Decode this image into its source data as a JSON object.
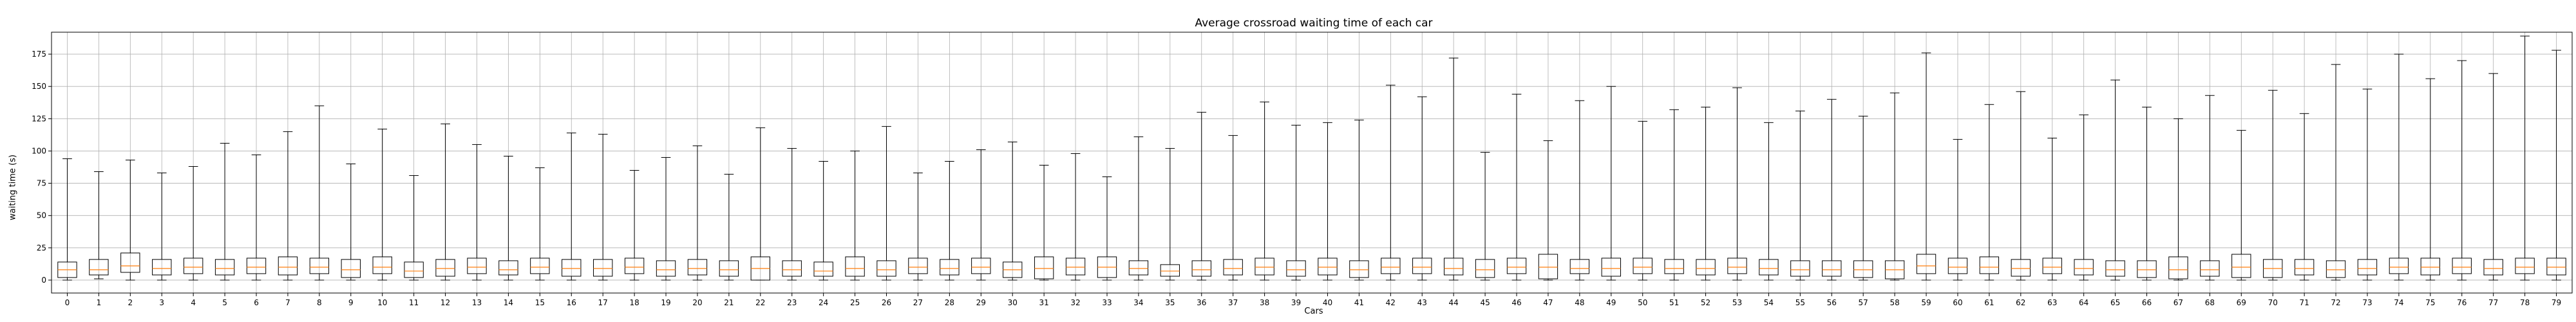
{
  "chart_data": {
    "type": "box",
    "title": "Average crossroad waiting time of each car",
    "xlabel": "Cars",
    "ylabel": "waiting time (s)",
    "grid": true,
    "ylim": [
      -10,
      192
    ],
    "yticks": [
      0,
      25,
      50,
      75,
      100,
      125,
      150,
      175
    ],
    "categories": [
      "0",
      "1",
      "2",
      "3",
      "4",
      "5",
      "6",
      "7",
      "8",
      "9",
      "10",
      "11",
      "12",
      "13",
      "14",
      "15",
      "16",
      "17",
      "18",
      "19",
      "20",
      "21",
      "22",
      "23",
      "24",
      "25",
      "26",
      "27",
      "28",
      "29",
      "30",
      "31",
      "32",
      "33",
      "34",
      "35",
      "36",
      "37",
      "38",
      "39",
      "40",
      "41",
      "42",
      "43",
      "44",
      "45",
      "46",
      "47",
      "48",
      "49",
      "50",
      "51",
      "52",
      "53",
      "54",
      "55",
      "56",
      "57",
      "58",
      "59",
      "60",
      "61",
      "62",
      "63",
      "64",
      "65",
      "66",
      "67",
      "68",
      "69",
      "70",
      "71",
      "72",
      "73",
      "74",
      "75",
      "76",
      "77",
      "78",
      "79"
    ],
    "whisker_high": [
      94,
      84,
      93,
      83,
      88,
      106,
      97,
      115,
      135,
      90,
      117,
      81,
      121,
      105,
      96,
      87,
      114,
      113,
      85,
      95,
      104,
      82,
      118,
      102,
      92,
      100,
      119,
      83,
      92,
      101,
      107,
      89,
      98,
      80,
      111,
      102,
      130,
      112,
      138,
      120,
      122,
      124,
      151,
      142,
      172,
      99,
      144,
      108,
      139,
      150,
      123,
      132,
      134,
      149,
      122,
      131,
      140,
      127,
      145,
      176,
      109,
      136,
      146,
      110,
      128,
      155,
      134,
      125,
      143,
      116,
      147,
      129,
      167,
      148,
      175,
      156,
      170,
      160,
      189,
      178
    ],
    "q3": [
      14,
      16,
      21,
      16,
      17,
      16,
      17,
      18,
      17,
      16,
      18,
      14,
      16,
      17,
      15,
      17,
      16,
      16,
      17,
      15,
      16,
      15,
      18,
      15,
      14,
      18,
      15,
      17,
      16,
      17,
      14,
      18,
      17,
      18,
      15,
      12,
      15,
      16,
      17,
      15,
      17,
      15,
      17,
      17,
      17,
      16,
      17,
      20,
      16,
      17,
      17,
      16,
      16,
      17,
      16,
      15,
      15,
      15,
      15,
      20,
      17,
      18,
      16,
      17,
      16,
      15,
      15,
      18,
      15,
      20,
      16,
      16,
      15,
      16,
      17,
      17,
      17,
      16,
      17,
      17
    ],
    "median": [
      8,
      8,
      11,
      9,
      10,
      9,
      10,
      10,
      10,
      8,
      10,
      7,
      9,
      10,
      8,
      10,
      9,
      9,
      10,
      8,
      9,
      8,
      9,
      8,
      7,
      9,
      8,
      10,
      9,
      10,
      8,
      9,
      10,
      10,
      9,
      7,
      8,
      9,
      10,
      8,
      10,
      8,
      10,
      10,
      9,
      8,
      10,
      10,
      9,
      9,
      10,
      9,
      9,
      10,
      9,
      8,
      8,
      8,
      8,
      11,
      10,
      10,
      9,
      10,
      9,
      8,
      8,
      8,
      8,
      10,
      9,
      9,
      8,
      9,
      10,
      10,
      10,
      9,
      10,
      10
    ],
    "q1": [
      2,
      4,
      6,
      4,
      5,
      4,
      5,
      4,
      5,
      2,
      5,
      2,
      3,
      5,
      4,
      5,
      3,
      3,
      5,
      3,
      4,
      3,
      0,
      3,
      3,
      3,
      3,
      5,
      4,
      5,
      2,
      1,
      4,
      2,
      4,
      3,
      3,
      4,
      4,
      3,
      4,
      2,
      5,
      5,
      4,
      2,
      5,
      1,
      5,
      3,
      5,
      5,
      4,
      5,
      4,
      3,
      3,
      2,
      1,
      5,
      5,
      5,
      3,
      5,
      4,
      3,
      2,
      1,
      3,
      2,
      2,
      4,
      2,
      4,
      5,
      4,
      5,
      4,
      5,
      4
    ],
    "whisker_low": [
      0,
      1,
      0,
      0,
      0,
      0,
      0,
      0,
      0,
      0,
      0,
      0,
      0,
      0,
      0,
      0,
      0,
      0,
      0,
      0,
      0,
      0,
      0,
      0,
      0,
      0,
      0,
      0,
      0,
      0,
      0,
      0,
      0,
      0,
      0,
      0,
      0,
      0,
      0,
      0,
      0,
      0,
      0,
      0,
      0,
      0,
      0,
      0,
      0,
      0,
      0,
      0,
      0,
      0,
      0,
      0,
      0,
      0,
      0,
      0,
      0,
      0,
      0,
      0,
      0,
      0,
      0,
      0,
      0,
      0,
      0,
      0,
      0,
      0,
      0,
      0,
      0,
      0,
      0,
      0
    ],
    "colors": {
      "box": "#000000",
      "median": "#ff7f0e",
      "grid": "#b0b0b0",
      "axis": "#000000"
    }
  }
}
